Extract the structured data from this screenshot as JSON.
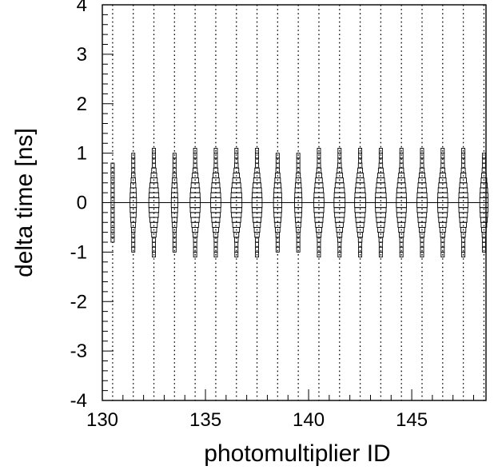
{
  "chart_data": {
    "type": "heatmap",
    "title": "",
    "xlabel": "photomultiplier ID",
    "ylabel": "delta time [ns]",
    "xlim": [
      130,
      148.6
    ],
    "ylim": [
      -4,
      4
    ],
    "x_ticks": [
      130,
      135,
      140,
      145
    ],
    "x_tick_labels": [
      "130",
      "135",
      "140",
      "145"
    ],
    "y_ticks": [
      -4,
      -3,
      -2,
      -1,
      0,
      1,
      2,
      3,
      4
    ],
    "y_tick_labels": [
      "-4",
      "-3",
      "-2",
      "-1",
      "0",
      "1",
      "2",
      "3",
      "4"
    ],
    "reference_line_y": 0,
    "grid": false,
    "marker": "box",
    "bin_width_ns": 0.1,
    "columns": [
      {
        "id": 130,
        "center": 0.0,
        "sigma": 0.7,
        "peak": 0.1
      },
      {
        "id": 131,
        "center": 0.0,
        "sigma": 0.5,
        "peak": 0.35
      },
      {
        "id": 132,
        "center": 0.0,
        "sigma": 0.5,
        "peak": 0.55
      },
      {
        "id": 133,
        "center": 0.0,
        "sigma": 0.5,
        "peak": 0.35
      },
      {
        "id": 134,
        "center": 0.0,
        "sigma": 0.5,
        "peak": 0.55
      },
      {
        "id": 135,
        "center": 0.0,
        "sigma": 0.5,
        "peak": 0.55
      },
      {
        "id": 136,
        "center": 0.0,
        "sigma": 0.5,
        "peak": 0.6
      },
      {
        "id": 137,
        "center": 0.0,
        "sigma": 0.5,
        "peak": 0.55
      },
      {
        "id": 138,
        "center": 0.0,
        "sigma": 0.5,
        "peak": 0.45
      },
      {
        "id": 139,
        "center": 0.0,
        "sigma": 0.5,
        "peak": 0.4
      },
      {
        "id": 140,
        "center": 0.0,
        "sigma": 0.5,
        "peak": 0.55
      },
      {
        "id": 141,
        "center": 0.0,
        "sigma": 0.5,
        "peak": 0.6
      },
      {
        "id": 142,
        "center": 0.0,
        "sigma": 0.5,
        "peak": 0.6
      },
      {
        "id": 143,
        "center": 0.0,
        "sigma": 0.5,
        "peak": 0.6
      },
      {
        "id": 144,
        "center": 0.0,
        "sigma": 0.5,
        "peak": 0.55
      },
      {
        "id": 145,
        "center": 0.0,
        "sigma": 0.5,
        "peak": 0.55
      },
      {
        "id": 146,
        "center": 0.0,
        "sigma": 0.5,
        "peak": 0.55
      },
      {
        "id": 147,
        "center": 0.0,
        "sigma": 0.5,
        "peak": 0.5
      },
      {
        "id": 148,
        "center": 0.0,
        "sigma": 0.5,
        "peak": 0.45
      }
    ]
  }
}
